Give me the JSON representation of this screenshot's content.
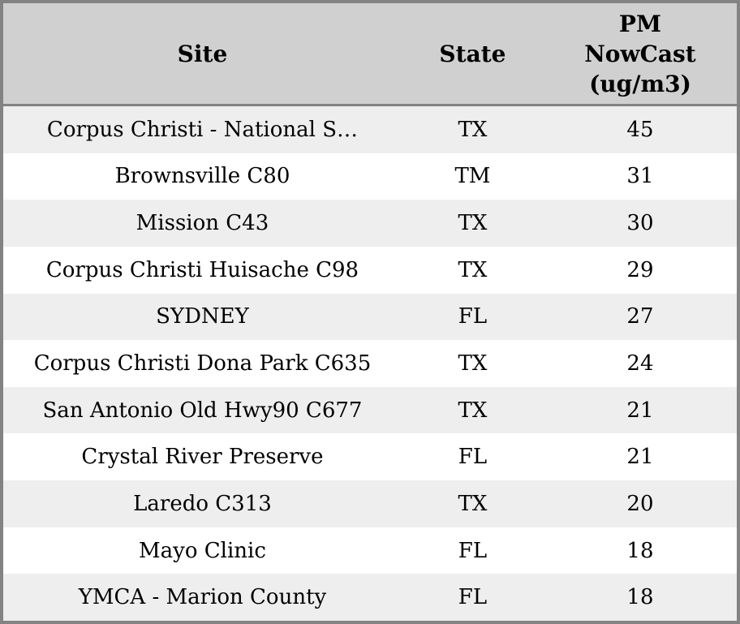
{
  "table": {
    "display_headers": [
      "Site",
      "State",
      "PM\nNowCast\n(ug/m3)"
    ]
  },
  "chart_data": {
    "type": "table",
    "columns": [
      "Site",
      "State",
      "PM NowCast (ug/m3)"
    ],
    "rows": [
      [
        "Corpus Christi - National S…",
        "TX",
        "45"
      ],
      [
        "Brownsville C80",
        "TM",
        "31"
      ],
      [
        "Mission C43",
        "TX",
        "30"
      ],
      [
        "Corpus Christi Huisache C98",
        "TX",
        "29"
      ],
      [
        "SYDNEY",
        "FL",
        "27"
      ],
      [
        "Corpus Christi Dona Park C635",
        "TX",
        "24"
      ],
      [
        "San Antonio Old Hwy90 C677",
        "TX",
        "21"
      ],
      [
        "Crystal River Preserve",
        "FL",
        "21"
      ],
      [
        "Laredo C313",
        "TX",
        "20"
      ],
      [
        "Mayo Clinic",
        "FL",
        "18"
      ],
      [
        "YMCA - Marion County",
        "FL",
        "18"
      ]
    ],
    "value_unit": "ug/m3",
    "layout": {
      "row_striping": "odd-rows-shaded",
      "text_align": "center"
    }
  },
  "colors": {
    "header_bg": "#d0d0d0",
    "row_shaded_bg": "#eeeeee",
    "row_bg": "#ffffff",
    "border": "#838383",
    "text": "#000000"
  }
}
